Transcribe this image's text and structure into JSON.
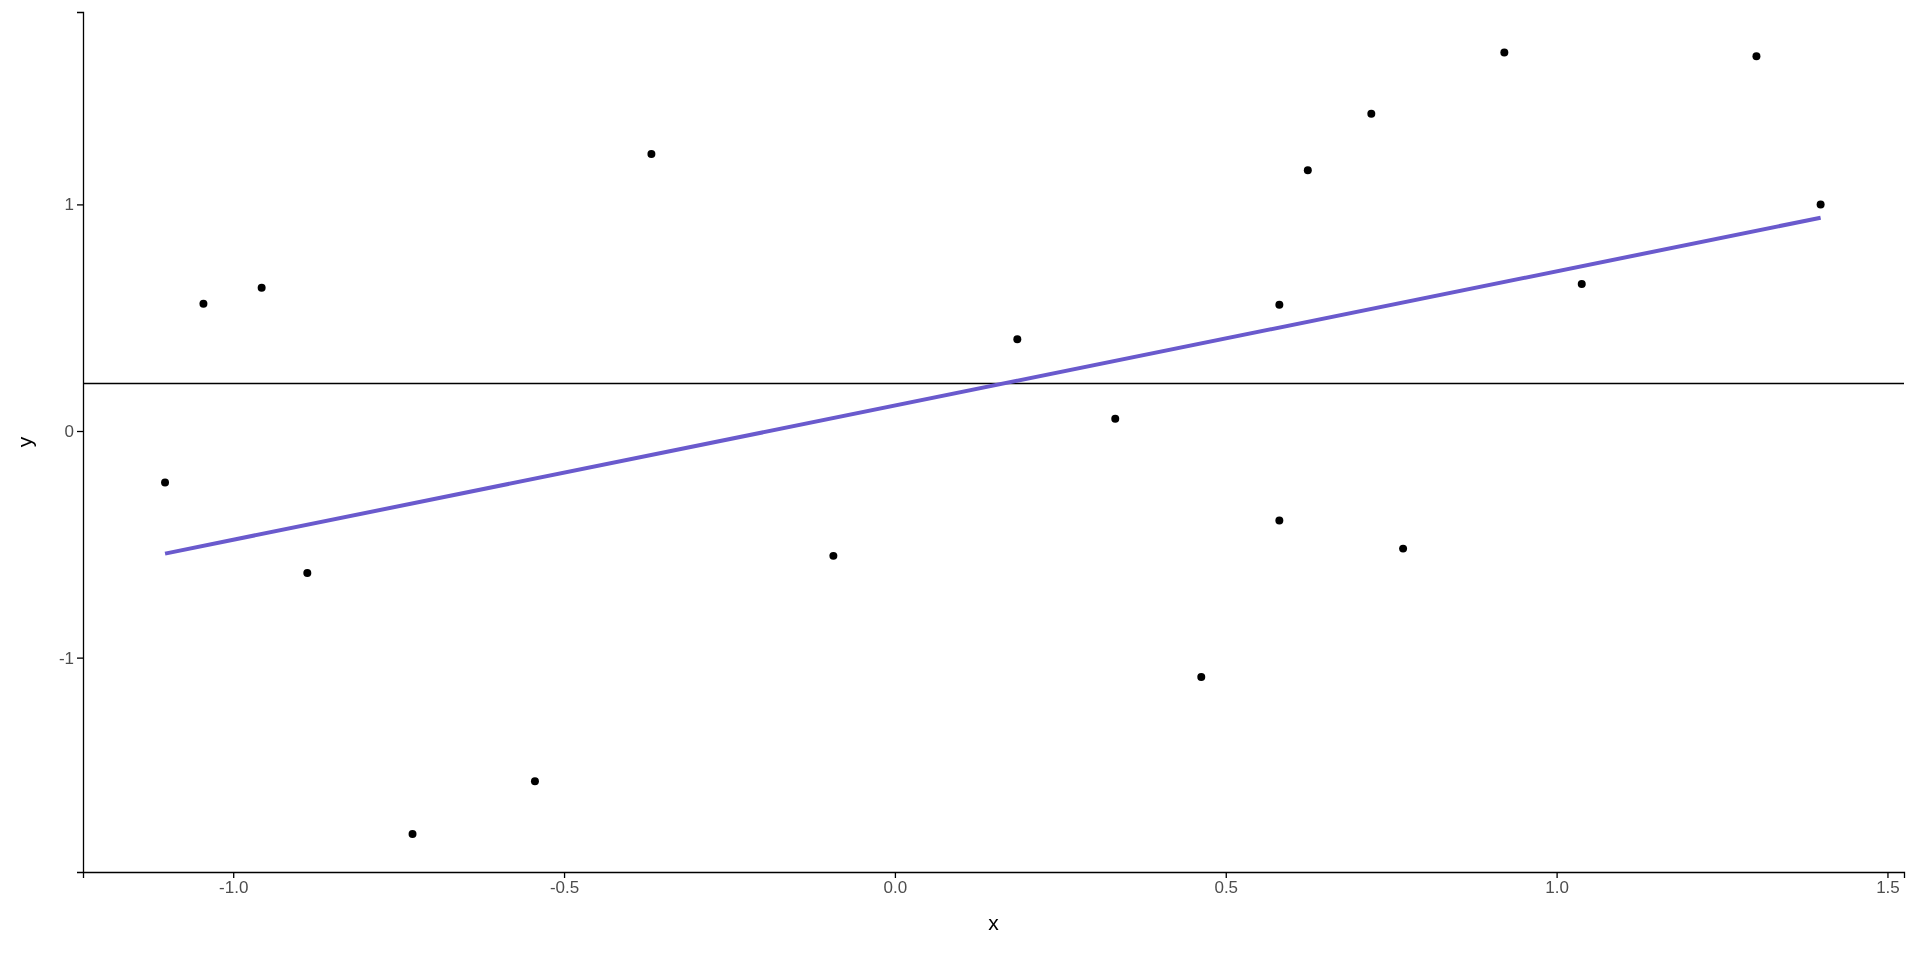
{
  "chart_data": {
    "type": "scatter",
    "xlabel": "x",
    "ylabel": "y",
    "xlim": [
      -1.227,
      1.525
    ],
    "ylim": [
      -1.946,
      1.849
    ],
    "xticks": [
      {
        "value": -1,
        "label": "-1.0"
      },
      {
        "value": -0.5,
        "label": "-0.5"
      },
      {
        "value": 0,
        "label": "0.0"
      },
      {
        "value": 0.5,
        "label": "0.5"
      },
      {
        "value": 1,
        "label": "1.0"
      },
      {
        "value": 1.5,
        "label": "1.5"
      }
    ],
    "yticks": [
      -1,
      0,
      1
    ],
    "grid": false,
    "ref_lines": [
      {
        "axis": "y",
        "value": 0.21,
        "color": "#000000"
      }
    ],
    "series": [
      {
        "marker": "circle",
        "color": "#000000",
        "x": [
          -1.103,
          -1.045,
          -0.957,
          -0.888,
          -0.729,
          -0.544,
          -0.368,
          -0.093,
          0.185,
          0.333,
          0.463,
          0.581,
          0.581,
          0.624,
          0.72,
          0.768,
          0.921,
          1.038,
          1.302,
          1.399
        ],
        "values": [
          -0.227,
          0.562,
          0.632,
          -0.627,
          -1.778,
          -1.546,
          1.222,
          -0.551,
          0.405,
          0.054,
          -1.086,
          0.557,
          -0.395,
          1.151,
          1.4,
          -0.519,
          1.67,
          0.649,
          1.654,
          1.0
        ]
      },
      {
        "type": "line",
        "color": "#6a5acd",
        "x": [
          -1.103,
          1.399
        ],
        "values": [
          -0.541,
          0.941
        ],
        "line_style": "solid"
      }
    ]
  }
}
